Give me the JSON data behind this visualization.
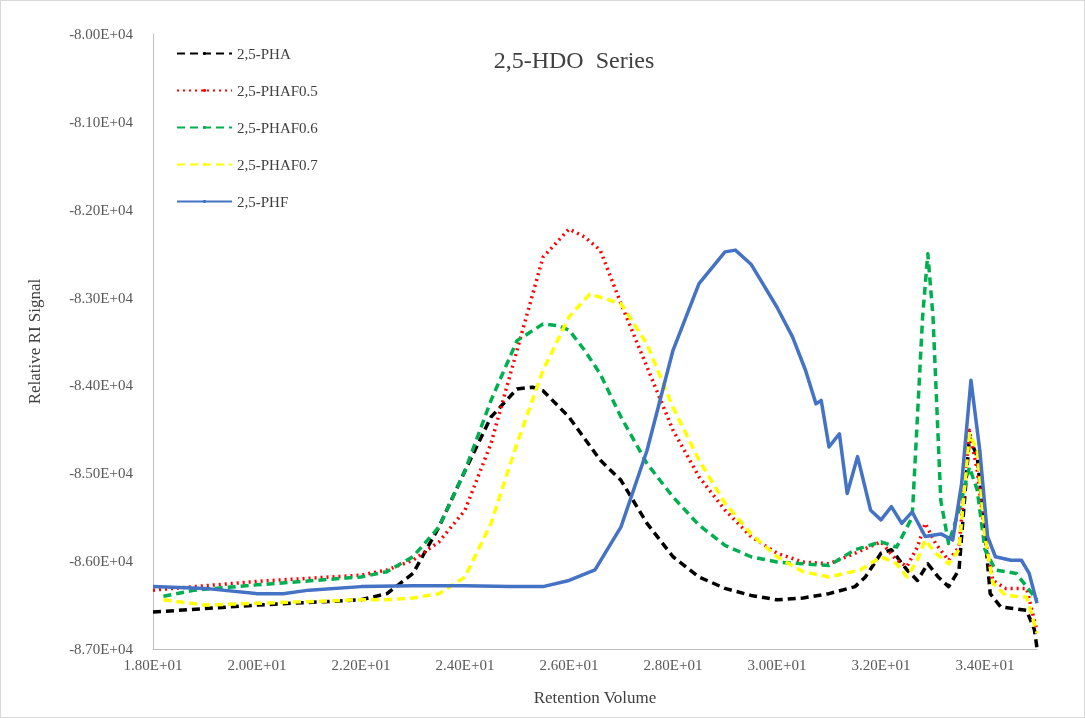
{
  "chart_data": {
    "type": "line",
    "title": "2,5-HDO  Series",
    "xlabel": "Retention Volume",
    "ylabel": "Relative RI Signal",
    "xlim": [
      18,
      35
    ],
    "ylim": [
      -87000,
      -80000
    ],
    "xticks": [
      {
        "value": 18,
        "label": "1.80E+01"
      },
      {
        "value": 20,
        "label": "2.00E+01"
      },
      {
        "value": 22,
        "label": "2.20E+01"
      },
      {
        "value": 24,
        "label": "2.40E+01"
      },
      {
        "value": 26,
        "label": "2.60E+01"
      },
      {
        "value": 28,
        "label": "2.80E+01"
      },
      {
        "value": 30,
        "label": "3.00E+01"
      },
      {
        "value": 32,
        "label": "3.20E+01"
      },
      {
        "value": 34,
        "label": "3.40E+01"
      }
    ],
    "yticks": [
      {
        "value": -87000,
        "label": "-8.70E+04"
      },
      {
        "value": -86000,
        "label": "-8.60E+04"
      },
      {
        "value": -85000,
        "label": "-8.50E+04"
      },
      {
        "value": -84000,
        "label": "-8.40E+04"
      },
      {
        "value": -83000,
        "label": "-8.30E+04"
      },
      {
        "value": -82000,
        "label": "-8.20E+04"
      },
      {
        "value": -81000,
        "label": "-8.10E+04"
      },
      {
        "value": -80000,
        "label": "-8.00E+04"
      }
    ],
    "grid": false,
    "legend": "top left",
    "marker": "none",
    "series": [
      {
        "name": "2,5-PHA",
        "color": "#000000",
        "line_style": "dashed",
        "x": [
          18,
          20,
          22,
          22.5,
          23,
          23.5,
          24,
          24.5,
          25,
          25.3,
          25.5,
          26,
          26.6,
          27,
          27.5,
          28,
          28.5,
          29,
          29.5,
          30,
          30.5,
          31,
          31.5,
          31.7,
          32,
          32.2,
          32.5,
          32.7,
          32.9,
          33.1,
          33.3,
          33.5,
          33.7,
          33.85,
          34,
          34.1,
          34.3,
          34.8,
          34.95,
          35
        ],
        "values": [
          -86580,
          -86500,
          -86440,
          -86370,
          -86140,
          -85610,
          -84970,
          -84360,
          -84040,
          -84020,
          -84060,
          -84360,
          -84850,
          -85080,
          -85570,
          -85950,
          -86180,
          -86310,
          -86390,
          -86440,
          -86420,
          -86370,
          -86290,
          -86180,
          -85910,
          -85870,
          -86100,
          -86220,
          -86030,
          -86180,
          -86290,
          -86100,
          -84590,
          -84810,
          -85690,
          -86370,
          -86520,
          -86560,
          -86780,
          -86990
        ]
      },
      {
        "name": "2,5-PHAF0.5",
        "color": "#ff0000",
        "line_style": "dotted",
        "x": [
          18,
          20,
          22,
          22.5,
          23,
          23.5,
          24,
          24.5,
          25,
          25.5,
          26,
          26.3,
          26.6,
          27,
          27.5,
          28,
          28.5,
          29,
          29.5,
          30,
          30.5,
          31,
          31.5,
          32,
          32.3,
          32.5,
          32.7,
          32.85,
          33.05,
          33.3,
          33.5,
          33.7,
          33.85,
          34,
          34.15,
          34.4,
          34.8,
          35
        ],
        "values": [
          -86330,
          -86230,
          -86160,
          -86100,
          -85990,
          -85780,
          -85420,
          -84660,
          -83600,
          -82540,
          -82220,
          -82310,
          -82460,
          -83070,
          -83790,
          -84510,
          -85040,
          -85420,
          -85720,
          -85910,
          -86010,
          -86030,
          -85910,
          -85780,
          -85990,
          -86060,
          -85840,
          -85570,
          -85800,
          -85990,
          -85840,
          -84510,
          -84970,
          -85720,
          -86220,
          -86310,
          -86310,
          -86800
        ]
      },
      {
        "name": "2,5-PHAF0.6",
        "color": "#00b050",
        "line_style": "dashed",
        "x": [
          18.2,
          18.8,
          20,
          22,
          22.5,
          23,
          23.5,
          24,
          24.5,
          25,
          25.5,
          25.8,
          26,
          26.3,
          26.6,
          27,
          27.5,
          28,
          28.5,
          29,
          29.5,
          30,
          30.5,
          31,
          31.5,
          32,
          32.3,
          32.6,
          32.8,
          32.9,
          33,
          33.15,
          33.3,
          33.5,
          33.7,
          33.85,
          34,
          34.2,
          34.6,
          35
        ],
        "values": [
          -86400,
          -86330,
          -86270,
          -86180,
          -86120,
          -85950,
          -85610,
          -84970,
          -84170,
          -83490,
          -83300,
          -83320,
          -83370,
          -83600,
          -83870,
          -84360,
          -84890,
          -85270,
          -85590,
          -85820,
          -85950,
          -86010,
          -86030,
          -86050,
          -85870,
          -85780,
          -85840,
          -85500,
          -83220,
          -82500,
          -83220,
          -85310,
          -85800,
          -85420,
          -84930,
          -85190,
          -85870,
          -86100,
          -86140,
          -86440
        ]
      },
      {
        "name": "2,5-PHAF0.7",
        "color": "#ffff00",
        "line_style": "dashed",
        "x": [
          18.2,
          19,
          20,
          22,
          22.5,
          23,
          23.5,
          24,
          24.5,
          25,
          25.5,
          26,
          26.4,
          27,
          27.5,
          28,
          28.5,
          29,
          29.5,
          30,
          30.5,
          31,
          31.3,
          31.6,
          32,
          32.3,
          32.5,
          32.7,
          32.85,
          33.05,
          33.3,
          33.5,
          33.7,
          33.85,
          34,
          34.15,
          34.4,
          34.8,
          35
        ],
        "values": [
          -86440,
          -86500,
          -86480,
          -86440,
          -86440,
          -86420,
          -86370,
          -86180,
          -85570,
          -84660,
          -83830,
          -83220,
          -82960,
          -83070,
          -83530,
          -84250,
          -84850,
          -85340,
          -85690,
          -85950,
          -86120,
          -86180,
          -86140,
          -86100,
          -85950,
          -86030,
          -86180,
          -85990,
          -85760,
          -85910,
          -86030,
          -85870,
          -84550,
          -84740,
          -85720,
          -86250,
          -86390,
          -86410,
          -86820
        ]
      },
      {
        "name": "2,5-PHF",
        "color": "#4472c4",
        "line_style": "solid",
        "x": [
          18,
          19,
          20,
          20.5,
          21,
          22,
          23,
          24,
          25,
          25.5,
          26,
          26.5,
          27,
          27.5,
          28,
          28.5,
          29,
          29.2,
          29.5,
          30,
          30.3,
          30.55,
          30.75,
          30.85,
          31,
          31.2,
          31.35,
          31.55,
          31.8,
          32,
          32.2,
          32.4,
          32.6,
          32.85,
          33.15,
          33.38,
          33.55,
          33.73,
          33.9,
          34.05,
          34.2,
          34.5,
          34.7,
          34.85,
          35
        ],
        "values": [
          -86290,
          -86310,
          -86370,
          -86370,
          -86330,
          -86290,
          -86280,
          -86280,
          -86290,
          -86290,
          -86220,
          -86100,
          -85610,
          -84740,
          -83600,
          -82840,
          -82480,
          -82460,
          -82620,
          -83110,
          -83450,
          -83830,
          -84210,
          -84170,
          -84700,
          -84550,
          -85230,
          -84810,
          -85420,
          -85530,
          -85380,
          -85570,
          -85440,
          -85720,
          -85690,
          -85760,
          -85120,
          -83940,
          -84740,
          -85720,
          -85950,
          -85990,
          -85990,
          -86140,
          -86480
        ]
      }
    ]
  }
}
